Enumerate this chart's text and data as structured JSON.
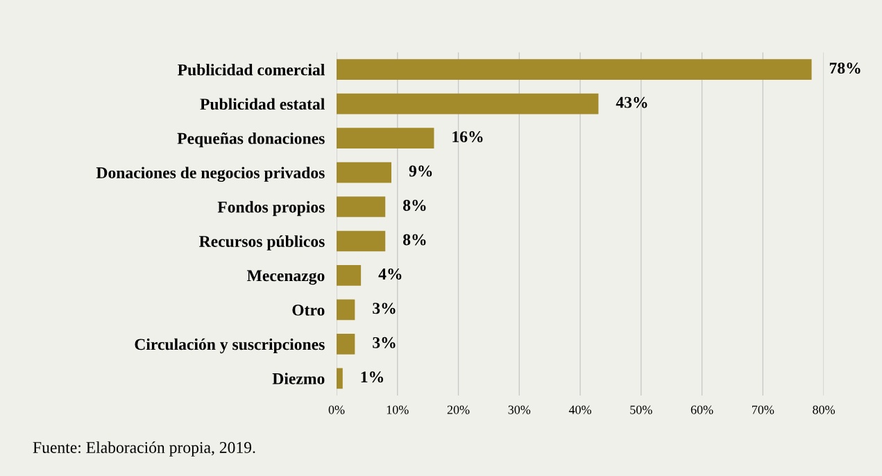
{
  "chart_data": {
    "type": "bar",
    "orientation": "horizontal",
    "categories": [
      "Publicidad comercial",
      "Publicidad estatal",
      "Pequeñas donaciones",
      "Donaciones de negocios privados",
      "Fondos propios",
      "Recursos públicos",
      "Mecenazgo",
      "Otro",
      "Circulación y suscripciones",
      "Diezmo"
    ],
    "values": [
      78,
      43,
      16,
      9,
      8,
      8,
      4,
      3,
      3,
      1
    ],
    "value_labels": [
      "78%",
      "43%",
      "16%",
      "9%",
      "8%",
      "8%",
      "4%",
      "3%",
      "3%",
      "1%"
    ],
    "color": "#a38b2b",
    "xlim": [
      0,
      80
    ],
    "xticks": [
      {
        "value": 0,
        "label": "0%"
      },
      {
        "value": 10,
        "label": "10%"
      },
      {
        "value": 20,
        "label": "20%"
      },
      {
        "value": 30,
        "label": "30%"
      },
      {
        "value": 40,
        "label": "40%"
      },
      {
        "value": 50,
        "label": "50%"
      },
      {
        "value": 60,
        "label": "60%"
      },
      {
        "value": 70,
        "label": "70%"
      },
      {
        "value": 80,
        "label": "80%"
      }
    ],
    "grid": "x",
    "annotations": [
      "Fuente: Elaboración propia, 2019."
    ]
  }
}
